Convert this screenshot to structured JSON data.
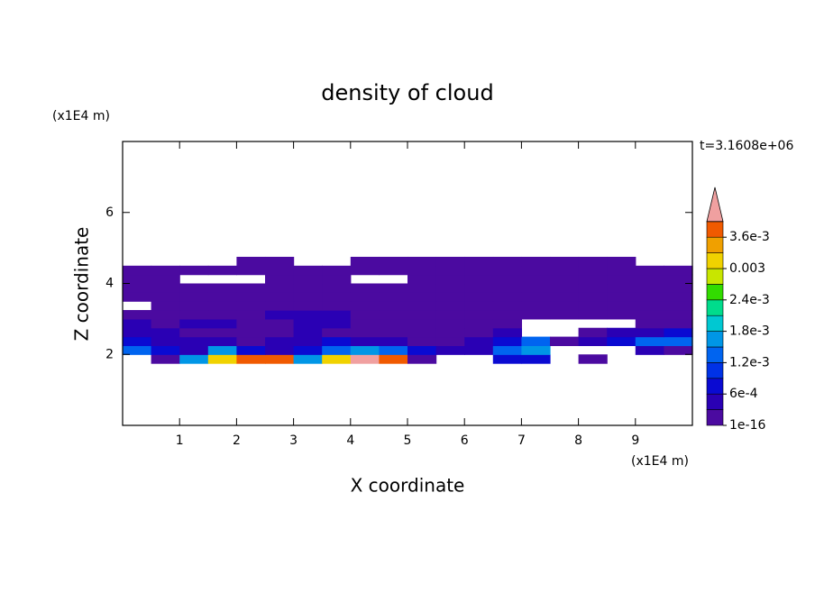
{
  "chart_data": {
    "type": "contour",
    "title": "density of cloud",
    "x_label": "X coordinate",
    "y_label": "Z coordinate",
    "x_unit": "(x1E4 m)",
    "y_unit": "(x1E4 m)",
    "annotation": "t=3.1608e+06",
    "xlim": [
      0,
      10
    ],
    "ylim": [
      0,
      8
    ],
    "xticks": [
      1,
      2,
      3,
      4,
      5,
      6,
      7,
      8,
      9
    ],
    "yticks": [
      2,
      4,
      6
    ],
    "x": [
      0.25,
      0.75,
      1.25,
      1.75,
      2.25,
      2.75,
      3.25,
      3.75,
      4.25,
      4.75,
      5.25,
      5.75,
      6.25,
      6.75,
      7.25,
      7.75,
      8.25,
      8.75,
      9.25,
      9.75
    ],
    "y": [
      1.875,
      2.125,
      2.375,
      2.625,
      2.875,
      3.125,
      3.375,
      3.625,
      3.875,
      4.125,
      4.375,
      4.625
    ],
    "z": [
      [
        null,
        0.0001,
        0.0015,
        0.003,
        0.0036,
        0.0036,
        0.0015,
        0.003,
        0.0042,
        0.0036,
        0.0001,
        null,
        null,
        0.0008,
        0.0008,
        null,
        0.0001,
        null,
        null,
        null
      ],
      [
        0.0012,
        0.0008,
        0.0004,
        0.0015,
        0.0008,
        0.0004,
        0.0008,
        0.0012,
        0.0015,
        0.0012,
        0.0008,
        0.0004,
        0.0004,
        0.0012,
        0.0015,
        null,
        null,
        null,
        0.0004,
        0.0001
      ],
      [
        0.0008,
        0.0004,
        0.0004,
        0.0004,
        0.0001,
        0.0004,
        0.0004,
        0.0008,
        0.0004,
        0.0004,
        0.0001,
        0.0001,
        0.0004,
        0.0008,
        0.0012,
        0.0001,
        0.0004,
        0.0008,
        0.0012,
        0.0012
      ],
      [
        0.0004,
        0.0004,
        0.0001,
        0.0001,
        0.0001,
        0.0001,
        0.0004,
        0.0001,
        0.0001,
        0.0001,
        0.0001,
        0.0001,
        0.0001,
        0.0004,
        null,
        null,
        0.0001,
        0.0004,
        0.0004,
        0.0008
      ],
      [
        0.0004,
        0.0001,
        0.0004,
        0.0004,
        0.0001,
        0.0001,
        0.0004,
        0.0004,
        0.0001,
        0.0001,
        0.0001,
        0.0001,
        0.0001,
        0.0001,
        null,
        null,
        null,
        null,
        0.0001,
        0.0001
      ],
      [
        0.0001,
        0.0001,
        0.0001,
        0.0001,
        0.0001,
        0.0004,
        0.0004,
        0.0004,
        0.0001,
        0.0001,
        0.0001,
        0.0001,
        0.0001,
        0.0001,
        0.0001,
        0.0001,
        0.0001,
        0.0001,
        0.0001,
        0.0001
      ],
      [
        null,
        0.0001,
        0.0001,
        0.0001,
        0.0001,
        0.0001,
        0.0001,
        0.0001,
        0.0001,
        0.0001,
        0.0001,
        0.0001,
        0.0001,
        0.0001,
        0.0001,
        0.0001,
        0.0001,
        0.0001,
        0.0001,
        0.0001
      ],
      [
        0.0001,
        0.0001,
        0.0001,
        0.0001,
        0.0001,
        0.0001,
        0.0001,
        0.0001,
        0.0001,
        0.0001,
        0.0001,
        0.0001,
        0.0001,
        0.0001,
        0.0001,
        0.0001,
        0.0001,
        0.0001,
        0.0001,
        0.0001
      ],
      [
        0.0001,
        0.0001,
        0.0001,
        0.0001,
        0.0001,
        0.0001,
        0.0001,
        0.0001,
        0.0001,
        0.0001,
        0.0001,
        0.0001,
        0.0001,
        0.0001,
        0.0001,
        0.0001,
        0.0001,
        0.0001,
        0.0001,
        0.0001
      ],
      [
        0.0001,
        0.0001,
        null,
        null,
        null,
        0.0001,
        0.0001,
        0.0001,
        null,
        null,
        0.0001,
        0.0001,
        0.0001,
        0.0001,
        0.0001,
        0.0001,
        0.0001,
        0.0001,
        0.0001,
        0.0001
      ],
      [
        0.0001,
        0.0001,
        0.0001,
        0.0001,
        0.0001,
        0.0001,
        0.0001,
        0.0001,
        0.0001,
        0.0001,
        0.0001,
        0.0001,
        0.0001,
        0.0001,
        0.0001,
        0.0001,
        0.0001,
        0.0001,
        0.0001,
        0.0001
      ],
      [
        null,
        null,
        null,
        null,
        0.0001,
        0.0001,
        null,
        null,
        0.0001,
        0.0001,
        0.0001,
        0.0001,
        0.0001,
        0.0001,
        0.0001,
        0.0001,
        0.0001,
        0.0001,
        null,
        null
      ]
    ],
    "levels": [
      1e-16,
      0.0003,
      0.0006,
      0.0009,
      0.0012,
      0.0015,
      0.0018,
      0.0021,
      0.0024,
      0.0027,
      0.003,
      0.0033,
      0.0036,
      0.0039
    ],
    "colors": [
      "#4b0aa0",
      "#2a00b4",
      "#0a0ad2",
      "#0032e6",
      "#0064f0",
      "#0096e6",
      "#00c8d2",
      "#00dc8c",
      "#32dc00",
      "#c8e600",
      "#f0d200",
      "#f0a000",
      "#f05a00"
    ],
    "over_color": "#f0a0a0",
    "colorbar_ticks": [
      {
        "value": 1e-16,
        "label": "1e-16"
      },
      {
        "value": 0.0006,
        "label": "6e-4"
      },
      {
        "value": 0.0012,
        "label": "1.2e-3"
      },
      {
        "value": 0.0018,
        "label": "1.8e-3"
      },
      {
        "value": 0.0024,
        "label": "2.4e-3"
      },
      0.003,
      {
        "value": 0.0036,
        "label": "3.6e-3"
      }
    ]
  }
}
